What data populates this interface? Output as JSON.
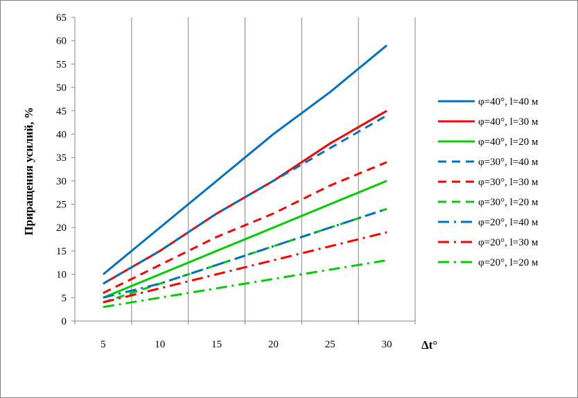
{
  "chart_data": {
    "type": "line",
    "title": "",
    "xlabel": "Δt°",
    "ylabel": "Приращения усилий, %",
    "x": [
      5,
      10,
      15,
      20,
      25,
      30
    ],
    "xlim": [
      2.5,
      32.5
    ],
    "ylim": [
      0,
      65
    ],
    "y_ticks": [
      0,
      5,
      10,
      15,
      20,
      25,
      30,
      35,
      40,
      45,
      50,
      55,
      60,
      65
    ],
    "x_ticks": [
      5,
      10,
      15,
      20,
      25,
      30
    ],
    "grid": "vertical",
    "legend_position": "right",
    "series": [
      {
        "name": "φ=40°, l=40 м",
        "color": "#0070c0",
        "dash": "solid",
        "values": [
          10,
          20,
          30,
          40,
          49,
          59
        ]
      },
      {
        "name": "φ=40°, l=30 м",
        "color": "#ff0000",
        "dash": "solid",
        "values": [
          8,
          15,
          23,
          30,
          38,
          45
        ]
      },
      {
        "name": "φ=40°, l=20 м",
        "color": "#00cc00",
        "dash": "solid",
        "values": [
          5,
          10,
          15,
          20,
          25,
          30
        ]
      },
      {
        "name": "φ=30°, l=40 м",
        "color": "#0070c0",
        "dash": "dash",
        "values": [
          8,
          15,
          23,
          30,
          37,
          44
        ]
      },
      {
        "name": "φ=30°, l=30 м",
        "color": "#ff0000",
        "dash": "dash",
        "values": [
          6,
          12,
          18,
          23,
          29,
          34
        ]
      },
      {
        "name": "φ=30°, l=20 м",
        "color": "#00cc00",
        "dash": "dash",
        "values": [
          4,
          8,
          12,
          16,
          20,
          24
        ]
      },
      {
        "name": "φ=20°, l=40 м",
        "color": "#0070c0",
        "dash": "dashdot",
        "values": [
          5,
          8,
          12,
          16,
          20,
          24
        ]
      },
      {
        "name": "φ=20°, l=30 м",
        "color": "#ff0000",
        "dash": "dashdot",
        "values": [
          4,
          7,
          10,
          13,
          16,
          19
        ]
      },
      {
        "name": "φ=20°, l=20 м",
        "color": "#00cc00",
        "dash": "dashdot",
        "values": [
          3,
          5,
          7,
          9,
          11,
          13
        ]
      }
    ]
  }
}
